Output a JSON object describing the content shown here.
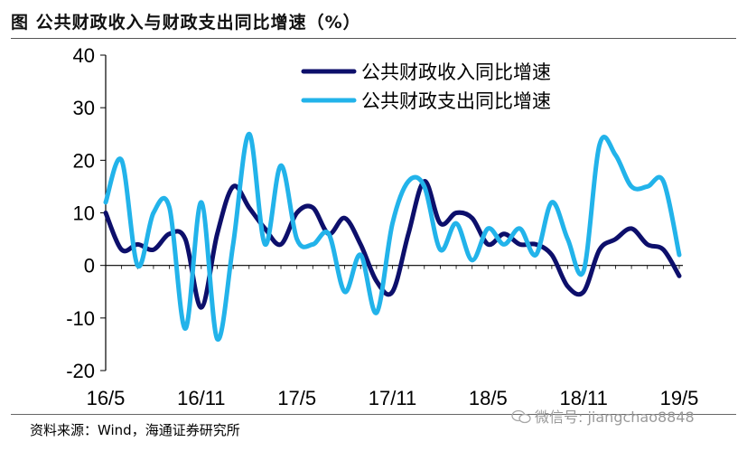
{
  "header": {
    "title": "图   公共财政收入与财政支出同比增速（%）"
  },
  "chart_data": {
    "type": "line",
    "x": [
      "16/5",
      "16/6",
      "16/7",
      "16/8",
      "16/9",
      "16/10",
      "16/11",
      "16/12",
      "17/1",
      "17/2",
      "17/3",
      "17/4",
      "17/5",
      "17/6",
      "17/7",
      "17/8",
      "17/9",
      "17/10",
      "17/11",
      "17/12",
      "18/1",
      "18/2",
      "18/3",
      "18/4",
      "18/5",
      "18/6",
      "18/7",
      "18/8",
      "18/9",
      "18/10",
      "18/11",
      "18/12",
      "19/1",
      "19/2",
      "19/3",
      "19/4",
      "19/5"
    ],
    "x_tick_labels": [
      "16/5",
      "16/11",
      "17/5",
      "17/11",
      "18/5",
      "18/11",
      "19/5"
    ],
    "ylim": [
      -20,
      40
    ],
    "y_ticks": [
      -20,
      -10,
      0,
      10,
      20,
      30,
      40
    ],
    "legend_position": "top-right",
    "series": [
      {
        "name": "公共财政收入同比增速",
        "color": "#0d0f6b",
        "values": [
          10,
          3,
          4,
          3,
          6,
          5,
          -8,
          6,
          15,
          11,
          7,
          4,
          10,
          11,
          6,
          9,
          4,
          -3,
          -5,
          6,
          16,
          8,
          10,
          9,
          4,
          6,
          4,
          4,
          2,
          -4,
          -5,
          3,
          5,
          7,
          4,
          3,
          -2
        ]
      },
      {
        "name": "公共财政支出同比增速",
        "color": "#22b3ea",
        "values": [
          12,
          20,
          0,
          10,
          11,
          -12,
          12,
          -14,
          4,
          25,
          4,
          19,
          5,
          4,
          6,
          -5,
          2,
          -9,
          8,
          16,
          15,
          3,
          8,
          1,
          7,
          4,
          7,
          2,
          12,
          5,
          -1,
          23,
          21,
          15,
          15,
          16,
          2
        ]
      }
    ]
  },
  "source": {
    "text": "资料来源：Wind，海通证券研究所"
  },
  "watermark": {
    "text": "微信号: jiangchao8848",
    "icon": "wechat-icon"
  }
}
